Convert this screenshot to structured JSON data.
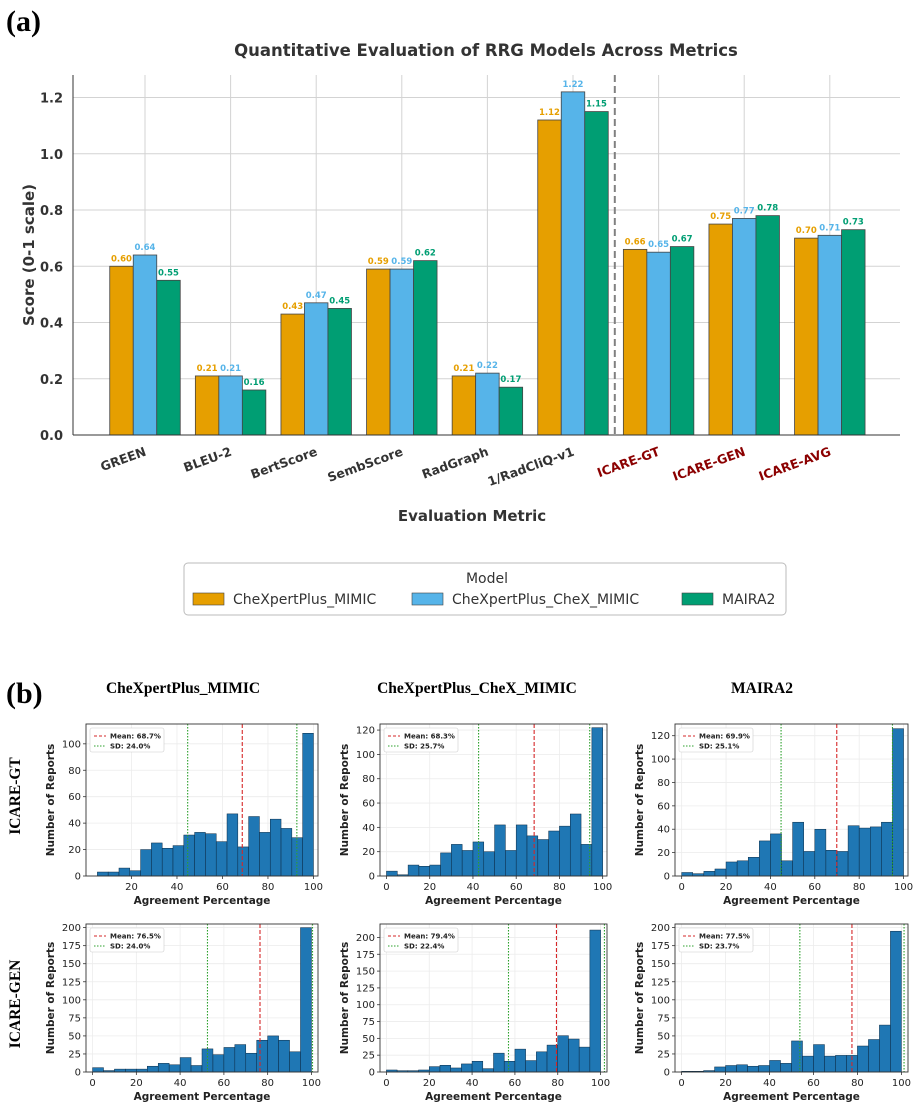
{
  "panel_a_label": "(a)",
  "panel_b_label": "(b)",
  "colors": {
    "CheXpertPlus_MIMIC": "#E69F00",
    "CheXpertPlus_CheX_MIMIC": "#56B4E9",
    "MAIRA2": "#009E73",
    "icare_label": "#8B0000",
    "hist_bar": "#1f77b4",
    "mean_line": "#d62728",
    "sd_line": "#2ca02c"
  },
  "chart_data": [
    {
      "type": "bar",
      "title": "Quantitative Evaluation of RRG Models Across Metrics",
      "xlabel": "Evaluation Metric",
      "ylabel": "Score (0-1 scale)",
      "ylim": [
        0,
        1.28
      ],
      "yticks": [
        0.0,
        0.2,
        0.4,
        0.6,
        0.8,
        1.0,
        1.2
      ],
      "categories": [
        "GREEN",
        "BLEU-2",
        "BertScore",
        "SembScore",
        "RadGraph",
        "1/RadCliQ-v1",
        "ICARE-GT",
        "ICARE-GEN",
        "ICARE-AVG"
      ],
      "highlighted_categories": [
        "ICARE-GT",
        "ICARE-GEN",
        "ICARE-AVG"
      ],
      "series": [
        {
          "name": "CheXpertPlus_MIMIC",
          "values": [
            0.6,
            0.21,
            0.43,
            0.59,
            0.21,
            1.12,
            0.66,
            0.75,
            0.7
          ],
          "labels": [
            "0.60",
            "0.21",
            "0.43",
            "0.59",
            "0.21",
            "1.12",
            "0.66",
            "0.75",
            "0.70"
          ]
        },
        {
          "name": "CheXpertPlus_CheX_MIMIC",
          "values": [
            0.64,
            0.21,
            0.47,
            0.59,
            0.22,
            1.22,
            0.65,
            0.77,
            0.71
          ],
          "labels": [
            "0.64",
            "0.21",
            "0.47",
            "0.59",
            "0.22",
            "1.22",
            "0.65",
            "0.77",
            "0.71"
          ]
        },
        {
          "name": "MAIRA2",
          "values": [
            0.55,
            0.16,
            0.45,
            0.62,
            0.17,
            1.15,
            0.67,
            0.78,
            0.73
          ],
          "labels": [
            "0.55",
            "0.16",
            "0.45",
            "0.62",
            "0.17",
            "1.15",
            "0.67",
            "0.78",
            "0.73"
          ]
        }
      ],
      "separator_after_category_index": 5,
      "legend": {
        "title": "Model",
        "position": "bottom-center",
        "entries": [
          "CheXpertPlus_MIMIC",
          "CheXpertPlus_CheX_MIMIC",
          "MAIRA2"
        ]
      }
    },
    {
      "type": "histogram",
      "row": "ICARE-GT",
      "column": "CheXpertPlus_MIMIC",
      "xlabel": "Agreement Percentage",
      "ylabel": "Number of Reports",
      "xlim": [
        0,
        102
      ],
      "ylim": [
        0,
        115
      ],
      "yticks": [
        0,
        20,
        40,
        60,
        80,
        100
      ],
      "xticks": [
        20,
        40,
        60,
        80,
        100
      ],
      "bin_start": 5,
      "bin_width": 4.75,
      "counts": [
        3,
        3,
        6,
        4,
        20,
        25,
        21,
        23,
        31,
        33,
        32,
        26,
        47,
        22,
        45,
        33,
        43,
        36,
        29,
        108
      ],
      "mean": 68.7,
      "sd": 24.0,
      "mean_label": "Mean: 68.7%",
      "sd_label": "SD: 24.0%"
    },
    {
      "type": "histogram",
      "row": "ICARE-GT",
      "column": "CheXpertPlus_CheX_MIMIC",
      "xlabel": "Agreement Percentage",
      "ylabel": "Number of Reports",
      "xlim": [
        -3,
        102
      ],
      "ylim": [
        0,
        125
      ],
      "yticks": [
        0,
        20,
        40,
        60,
        80,
        100,
        120
      ],
      "xticks": [
        0,
        20,
        40,
        60,
        80,
        100
      ],
      "bin_start": 0,
      "bin_width": 5,
      "counts": [
        4,
        1,
        9,
        8,
        9,
        19,
        26,
        21,
        28,
        20,
        42,
        21,
        42,
        33,
        30,
        37,
        41,
        51,
        26,
        122
      ],
      "mean": 68.3,
      "sd": 25.7,
      "mean_label": "Mean: 68.3%",
      "sd_label": "SD: 25.7%"
    },
    {
      "type": "histogram",
      "row": "ICARE-GT",
      "column": "MAIRA2",
      "xlabel": "Agreement Percentage",
      "ylabel": "Number of Reports",
      "xlim": [
        -3,
        102
      ],
      "ylim": [
        0,
        130
      ],
      "yticks": [
        0,
        20,
        40,
        60,
        80,
        100,
        120
      ],
      "xticks": [
        0,
        20,
        40,
        60,
        80,
        100
      ],
      "bin_start": 0,
      "bin_width": 5,
      "counts": [
        3,
        2,
        4,
        6,
        12,
        13,
        16,
        30,
        36,
        13,
        46,
        21,
        40,
        22,
        21,
        43,
        41,
        42,
        46,
        126
      ],
      "mean": 69.9,
      "sd": 25.1,
      "mean_label": "Mean: 69.9%",
      "sd_label": "SD: 25.1%"
    },
    {
      "type": "histogram",
      "row": "ICARE-GEN",
      "column": "CheXpertPlus_MIMIC",
      "xlabel": "Agreement Percentage",
      "ylabel": "Number of Reports",
      "xlim": [
        -3,
        103
      ],
      "ylim": [
        0,
        205
      ],
      "yticks": [
        0,
        25,
        50,
        75,
        100,
        125,
        150,
        175,
        200
      ],
      "xticks": [
        0,
        20,
        40,
        60,
        80,
        100
      ],
      "bin_start": 0,
      "bin_width": 5,
      "counts": [
        6,
        2,
        4,
        4,
        4,
        8,
        12,
        10,
        20,
        9,
        32,
        24,
        34,
        38,
        26,
        44,
        50,
        44,
        28,
        200
      ],
      "mean": 76.5,
      "sd": 24.0,
      "mean_label": "Mean: 76.5%",
      "sd_label": "SD: 24.0%"
    },
    {
      "type": "histogram",
      "row": "ICARE-GEN",
      "column": "CheXpertPlus_CheX_MIMIC",
      "xlabel": "Agreement Percentage",
      "ylabel": "Number of Reports",
      "xlim": [
        -3,
        103
      ],
      "ylim": [
        0,
        220
      ],
      "yticks": [
        0,
        25,
        50,
        75,
        100,
        125,
        150,
        175,
        200
      ],
      "xticks": [
        0,
        20,
        40,
        60,
        80,
        100
      ],
      "bin_start": 0,
      "bin_width": 5,
      "counts": [
        3,
        2,
        2,
        3,
        8,
        10,
        6,
        12,
        16,
        5,
        28,
        16,
        34,
        17,
        30,
        40,
        54,
        49,
        37,
        211
      ],
      "mean": 79.4,
      "sd": 22.4,
      "mean_label": "Mean: 79.4%",
      "sd_label": "SD: 22.4%"
    },
    {
      "type": "histogram",
      "row": "ICARE-GEN",
      "column": "MAIRA2",
      "xlabel": "Agreement Percentage",
      "ylabel": "Number of Reports",
      "xlim": [
        -3,
        103
      ],
      "ylim": [
        0,
        205
      ],
      "yticks": [
        0,
        25,
        50,
        75,
        100,
        125,
        150,
        175,
        200
      ],
      "xticks": [
        0,
        20,
        40,
        60,
        80,
        100
      ],
      "bin_start": 0,
      "bin_width": 5,
      "counts": [
        1,
        1,
        2,
        7,
        9,
        10,
        8,
        9,
        16,
        12,
        43,
        22,
        38,
        22,
        23,
        23,
        36,
        45,
        65,
        195
      ],
      "mean": 77.5,
      "sd": 23.7,
      "mean_label": "Mean: 77.5%",
      "sd_label": "SD: 23.7%"
    }
  ],
  "grid": {
    "column_titles": [
      "CheXpertPlus_MIMIC",
      "CheXpertPlus_CheX_MIMIC",
      "MAIRA2"
    ],
    "row_titles": [
      "ICARE-GT",
      "ICARE-GEN"
    ]
  }
}
